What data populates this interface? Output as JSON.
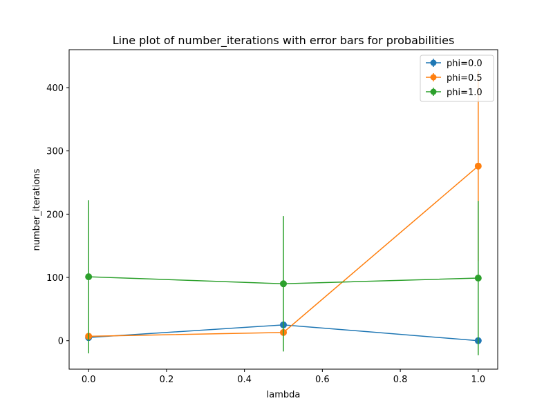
{
  "chart_data": {
    "type": "line",
    "title": "Line plot of number_iterations with error bars for probabilities",
    "xlabel": "lambda",
    "ylabel": "number_iterations",
    "xlim": [
      -0.05,
      1.05
    ],
    "ylim": [
      -45,
      460
    ],
    "xticks": [
      0.0,
      0.2,
      0.4,
      0.6,
      0.8,
      1.0
    ],
    "xtick_labels": [
      "0.0",
      "0.2",
      "0.4",
      "0.6",
      "0.8",
      "1.0"
    ],
    "yticks": [
      0,
      100,
      200,
      300,
      400
    ],
    "ytick_labels": [
      "0",
      "100",
      "200",
      "300",
      "400"
    ],
    "x": [
      0.0,
      0.5,
      1.0
    ],
    "grid": false,
    "legend_position": "top-right",
    "series": [
      {
        "name": "phi=0.0",
        "color": "#1f77b4",
        "values": [
          5,
          25,
          0
        ],
        "errors": [
          0,
          0,
          0
        ]
      },
      {
        "name": "phi=0.5",
        "color": "#ff7f0e",
        "values": [
          7,
          13,
          276
        ],
        "errors": [
          0,
          0,
          150
        ]
      },
      {
        "name": "phi=1.0",
        "color": "#2ca02c",
        "values": [
          101,
          90,
          99
        ],
        "errors": [
          121,
          107,
          122
        ]
      }
    ]
  }
}
